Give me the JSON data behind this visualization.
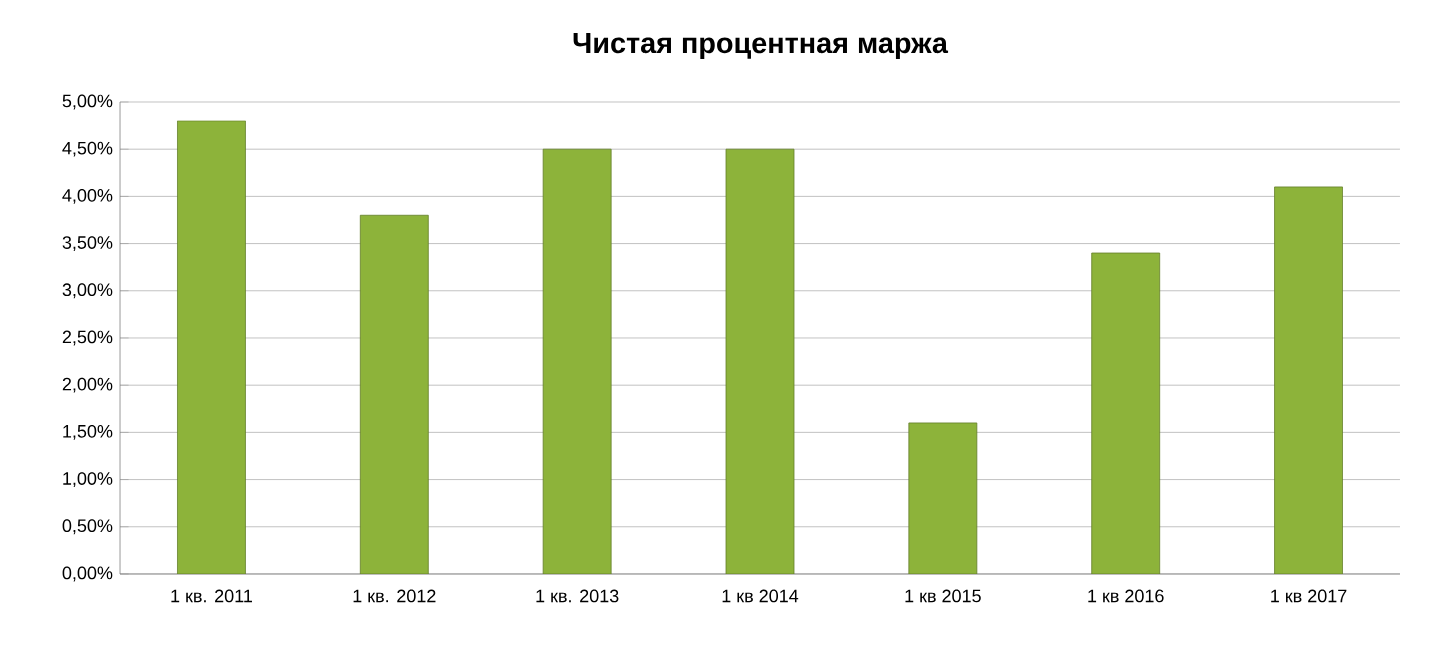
{
  "chart_data": {
    "type": "bar",
    "title": "Чистая процентная маржа",
    "categories": [
      "1 кв. 2011",
      "1 кв. 2012",
      "1 кв. 2013",
      "1 кв 2014",
      "1 кв 2015",
      "1 кв 2016",
      "1 кв 2017"
    ],
    "values": [
      4.8,
      3.8,
      4.5,
      4.5,
      1.6,
      3.4,
      4.1
    ],
    "color": "#8db33a",
    "ylim": [
      0,
      5
    ],
    "yticks": [
      {
        "value": 0,
        "label": "0,00%"
      },
      {
        "value": 0.5,
        "label": "0,50%"
      },
      {
        "value": 1,
        "label": "1,00%"
      },
      {
        "value": 1.5,
        "label": "1,50%"
      },
      {
        "value": 2,
        "label": "2,00%"
      },
      {
        "value": 2.5,
        "label": "2,50%"
      },
      {
        "value": 3,
        "label": "3,00%"
      },
      {
        "value": 3.5,
        "label": "3,50%"
      },
      {
        "value": 4,
        "label": "4,00%"
      },
      {
        "value": 4.5,
        "label": "4,50%"
      },
      {
        "value": 5,
        "label": "5,00%"
      }
    ],
    "grid": "y"
  }
}
